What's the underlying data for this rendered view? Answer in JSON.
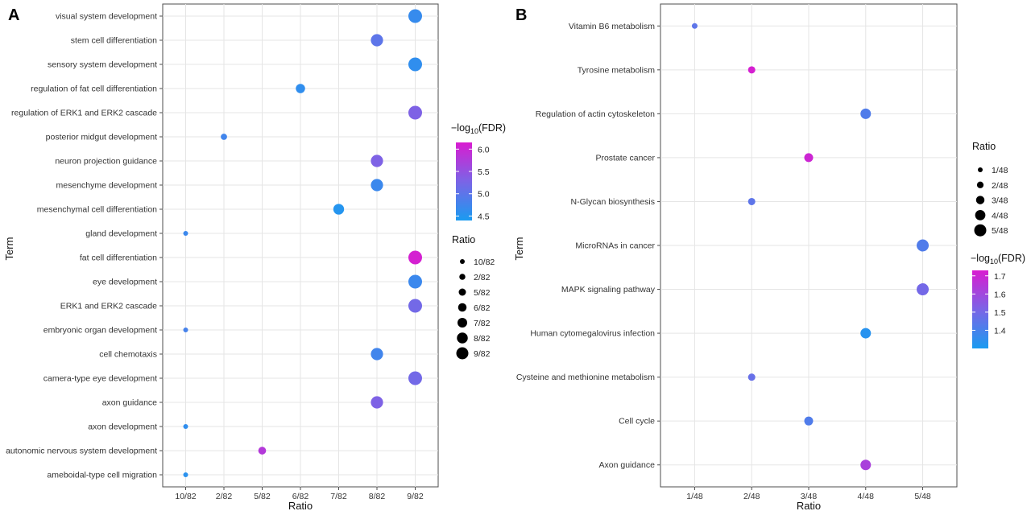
{
  "chart_data": [
    {
      "panel": "A",
      "type": "scatter",
      "xlabel": "Ratio",
      "ylabel": "Term",
      "x_categories": [
        "10/82",
        "2/82",
        "5/82",
        "6/82",
        "7/82",
        "8/82",
        "9/82"
      ],
      "points": [
        {
          "term": "visual system development",
          "ratio": "9/82",
          "log10_fdr": 4.65
        },
        {
          "term": "stem cell differentiation",
          "ratio": "8/82",
          "log10_fdr": 5.0
        },
        {
          "term": "sensory system development",
          "ratio": "9/82",
          "log10_fdr": 4.6
        },
        {
          "term": "regulation of fat cell differentiation",
          "ratio": "6/82",
          "log10_fdr": 4.6
        },
        {
          "term": "regulation of ERK1 and ERK2 cascade",
          "ratio": "9/82",
          "log10_fdr": 5.3
        },
        {
          "term": "posterior midgut development",
          "ratio": "2/82",
          "log10_fdr": 4.75
        },
        {
          "term": "neuron projection guidance",
          "ratio": "8/82",
          "log10_fdr": 5.3
        },
        {
          "term": "mesenchyme development",
          "ratio": "8/82",
          "log10_fdr": 4.7
        },
        {
          "term": "mesenchymal cell differentiation",
          "ratio": "7/82",
          "log10_fdr": 4.5
        },
        {
          "term": "gland development",
          "ratio": "10/82",
          "log10_fdr": 4.7
        },
        {
          "term": "fat cell differentiation",
          "ratio": "9/82",
          "log10_fdr": 6.1
        },
        {
          "term": "eye development",
          "ratio": "9/82",
          "log10_fdr": 4.7
        },
        {
          "term": "ERK1 and ERK2 cascade",
          "ratio": "9/82",
          "log10_fdr": 5.2
        },
        {
          "term": "embryonic organ development",
          "ratio": "10/82",
          "log10_fdr": 4.8
        },
        {
          "term": "cell chemotaxis",
          "ratio": "8/82",
          "log10_fdr": 4.75
        },
        {
          "term": "camera-type eye development",
          "ratio": "9/82",
          "log10_fdr": 5.2
        },
        {
          "term": "axon guidance",
          "ratio": "8/82",
          "log10_fdr": 5.3
        },
        {
          "term": "axon development",
          "ratio": "10/82",
          "log10_fdr": 4.6
        },
        {
          "term": "autonomic nervous system development",
          "ratio": "5/82",
          "log10_fdr": 5.8
        },
        {
          "term": "ameboidal-type cell migration",
          "ratio": "10/82",
          "log10_fdr": 4.55
        }
      ],
      "color_legend": {
        "title": "-log10(FDR)",
        "min": 4.4,
        "max": 6.15,
        "ticks": [
          "4.5",
          "5.0",
          "5.5",
          "6.0"
        ],
        "low_color": "#1a9bf0",
        "mid_color": "#7b64e6",
        "high_color": "#d91cd0"
      },
      "size_legend": {
        "title": "Ratio",
        "labels": [
          "10/82",
          "2/82",
          "5/82",
          "6/82",
          "7/82",
          "8/82",
          "9/82"
        ]
      }
    },
    {
      "panel": "B",
      "type": "scatter",
      "xlabel": "Ratio",
      "ylabel": "Term",
      "x_categories": [
        "1/48",
        "2/48",
        "3/48",
        "4/48",
        "5/48"
      ],
      "points": [
        {
          "term": "Vitamin B6 metabolism",
          "ratio": "1/48",
          "log10_fdr": 1.45
        },
        {
          "term": "Tyrosine metabolism",
          "ratio": "2/48",
          "log10_fdr": 1.72
        },
        {
          "term": "Regulation of actin cytoskeleton",
          "ratio": "4/48",
          "log10_fdr": 1.42
        },
        {
          "term": "Prostate cancer",
          "ratio": "3/48",
          "log10_fdr": 1.7
        },
        {
          "term": "N-Glycan biosynthesis",
          "ratio": "2/48",
          "log10_fdr": 1.45
        },
        {
          "term": "MicroRNAs in cancer",
          "ratio": "5/48",
          "log10_fdr": 1.42
        },
        {
          "term": "MAPK signaling pathway",
          "ratio": "5/48",
          "log10_fdr": 1.5
        },
        {
          "term": "Human cytomegalovirus infection",
          "ratio": "4/48",
          "log10_fdr": 1.33
        },
        {
          "term": "Cysteine and methionine metabolism",
          "ratio": "2/48",
          "log10_fdr": 1.47
        },
        {
          "term": "Cell cycle",
          "ratio": "3/48",
          "log10_fdr": 1.42
        },
        {
          "term": "Axon guidance",
          "ratio": "4/48",
          "log10_fdr": 1.62
        }
      ],
      "color_legend": {
        "title": "-log10(FDR)",
        "min": 1.3,
        "max": 1.73,
        "ticks": [
          "1.4",
          "1.5",
          "1.6",
          "1.7"
        ],
        "low_color": "#1a9bf0",
        "mid_color": "#7b64e6",
        "high_color": "#d91cd0"
      },
      "size_legend": {
        "title": "Ratio",
        "labels": [
          "1/48",
          "2/48",
          "3/48",
          "4/48",
          "5/48"
        ]
      }
    }
  ]
}
